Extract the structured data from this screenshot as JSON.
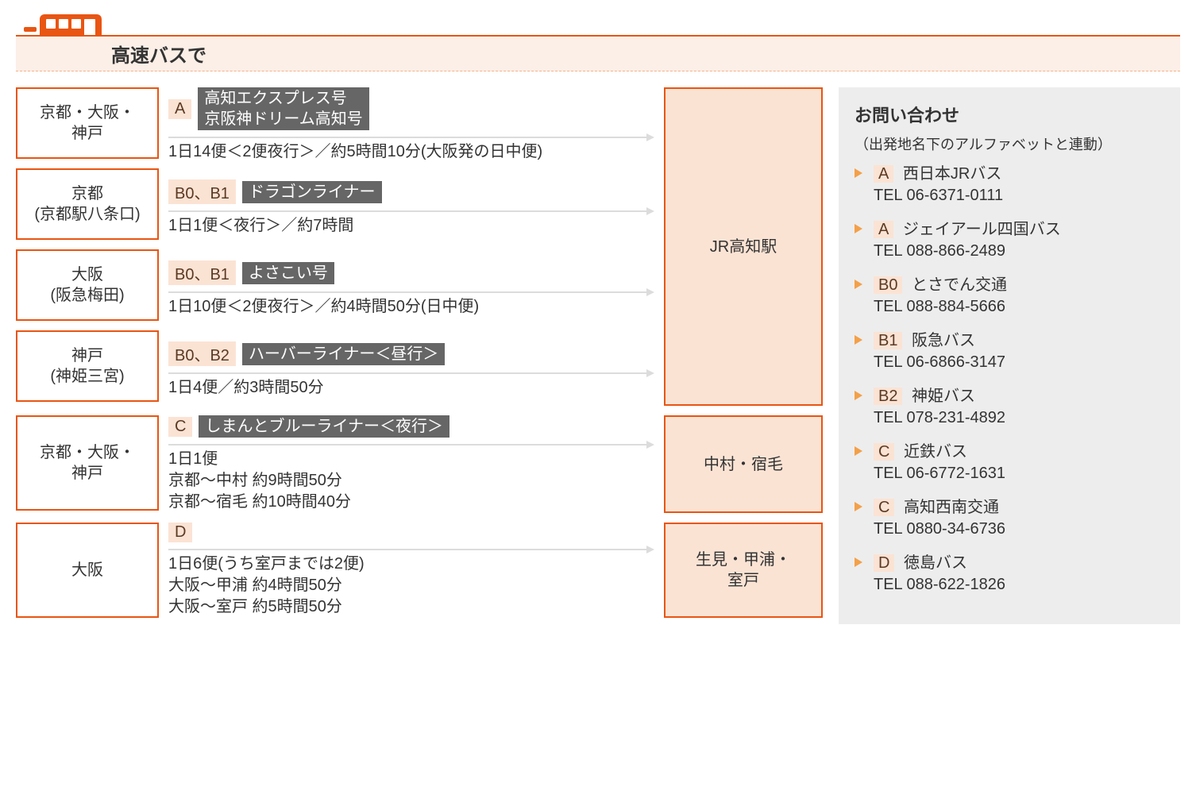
{
  "header": {
    "title": "高速バスで"
  },
  "routes": [
    {
      "origin": "京都・大阪・\n神戸",
      "operator_codes": "A",
      "bus_name": " 高知エクスプレス号\n 京阪神ドリーム高知号",
      "detail": "1日14便＜2便夜行＞／約5時間10分(大阪発の日中便)",
      "dest_group": 0
    },
    {
      "origin": "京都\n(京都駅八条口)",
      "operator_codes": "B0、B1",
      "bus_name": " ドラゴンライナー",
      "detail": "1日1便＜夜行＞／約7時間",
      "dest_group": 0
    },
    {
      "origin": "大阪\n(阪急梅田)",
      "operator_codes": "B0、B1",
      "bus_name": " よさこい号",
      "detail": "1日10便＜2便夜行＞／約4時間50分(日中便)",
      "dest_group": 0
    },
    {
      "origin": "神戸\n(神姫三宮)",
      "operator_codes": "B0、B2",
      "bus_name": " ハーバーライナー＜昼行＞",
      "detail": "1日4便／約3時間50分",
      "dest_group": 0
    },
    {
      "origin": "京都・大阪・\n神戸",
      "operator_codes": "C",
      "bus_name": " しまんとブルーライナー＜夜行＞",
      "detail": "1日1便\n京都〜中村 約9時間50分\n京都〜宿毛 約10時間40分",
      "dest_group": 1
    },
    {
      "origin": "大阪",
      "operator_codes": "D",
      "bus_name": "",
      "detail": "1日6便(うち室戸までは2便)\n大阪〜甲浦 約4時間50分\n大阪〜室戸 約5時間50分",
      "dest_group": 2
    }
  ],
  "destinations": [
    "JR高知駅",
    "中村・宿毛",
    "生見・甲浦・\n室戸"
  ],
  "contact": {
    "title": "お問い合わせ",
    "note": "（出発地名下のアルファベットと連動）",
    "operators": [
      {
        "code": "A",
        "name": "西日本JRバス",
        "tel": "TEL 06-6371-0111"
      },
      {
        "code": "A",
        "name": "ジェイアール四国バス",
        "tel": "TEL 088-866-2489"
      },
      {
        "code": "B0",
        "name": "とさでん交通",
        "tel": "TEL 088-884-5666"
      },
      {
        "code": "B1",
        "name": "阪急バス",
        "tel": "TEL 06-6866-3147"
      },
      {
        "code": "B2",
        "name": "神姫バス",
        "tel": "TEL 078-231-4892"
      },
      {
        "code": "C",
        "name": "近鉄バス",
        "tel": "TEL 06-6772-1631"
      },
      {
        "code": "C",
        "name": "高知西南交通",
        "tel": "TEL 0880-34-6736"
      },
      {
        "code": "D",
        "name": "徳島バス",
        "tel": "TEL 088-622-1826"
      }
    ]
  },
  "colors": {
    "orange": "#e95513",
    "orange_light": "#fbe3d4",
    "orange_bg_pale": "#fcefe7",
    "gray_badge": "#666666",
    "gray_bg": "#ededed",
    "bullet": "#f4a048",
    "border_gray": "#dcdcdc"
  }
}
